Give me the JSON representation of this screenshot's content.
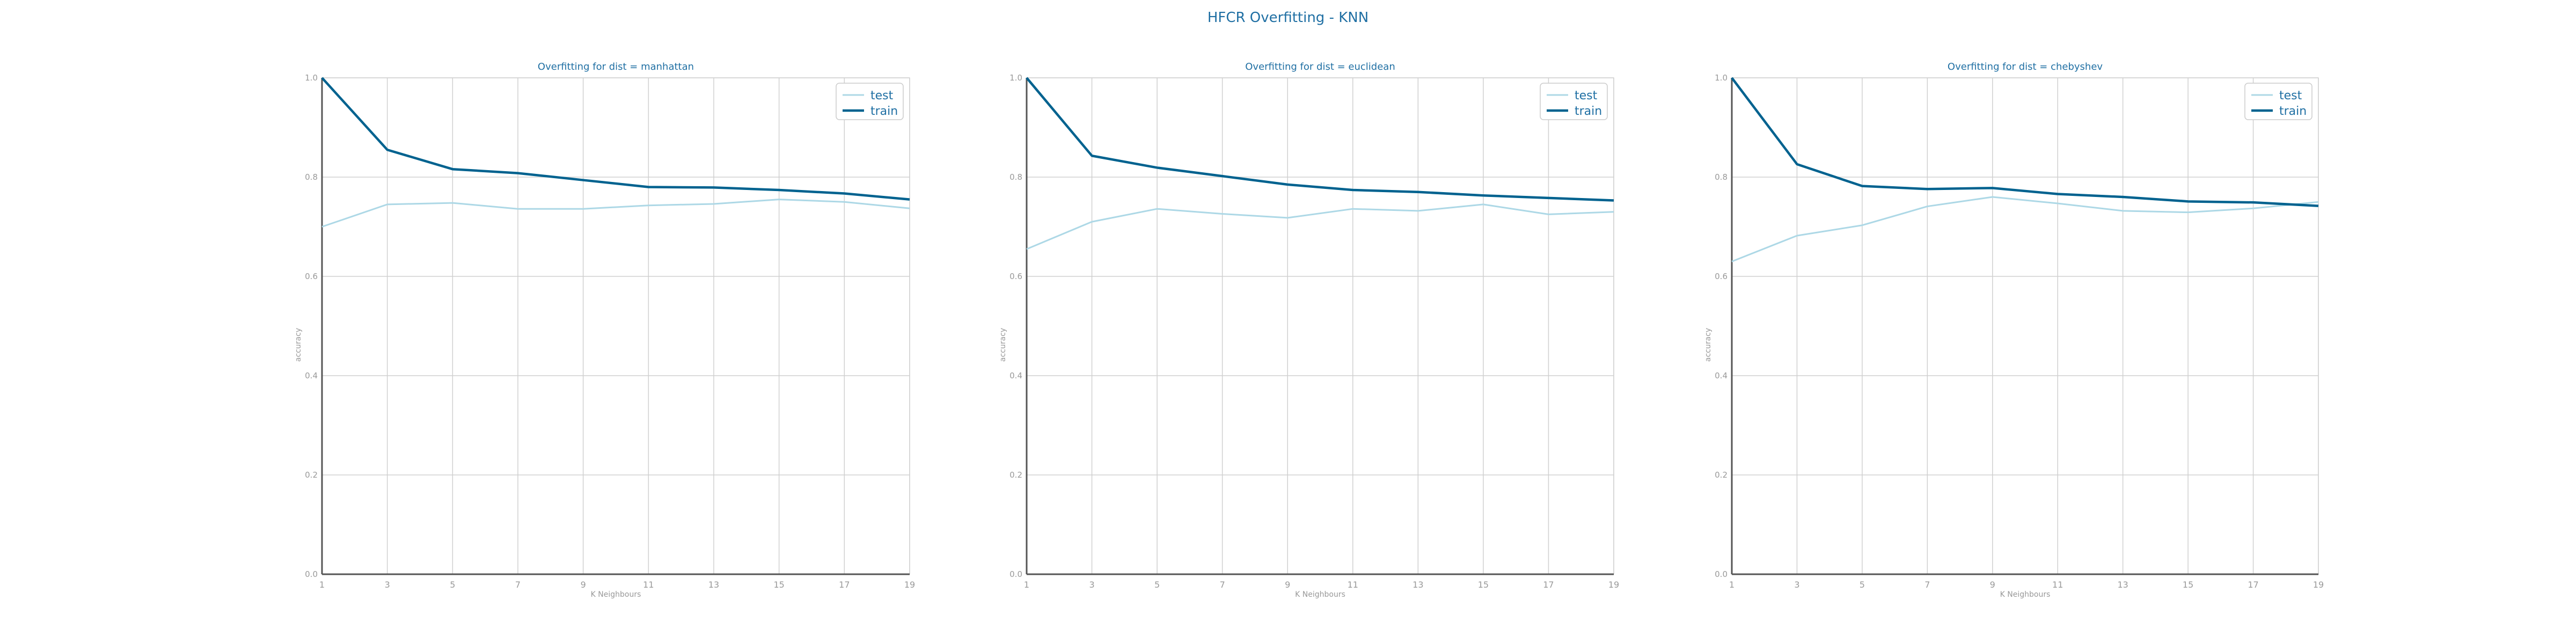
{
  "figure_title": "HFCR Overfitting - KNN",
  "colors": {
    "test": "#add8e6",
    "train": "#00628f",
    "title": "#1f6fa3",
    "grid": "#d0d0d0",
    "axis": "#555555",
    "tick": "#999999"
  },
  "chart_data": [
    {
      "type": "line",
      "title": "Overfitting for dist = manhattan",
      "xlabel": "K Neighbours",
      "ylabel": "accuracy",
      "x": [
        1,
        3,
        5,
        7,
        9,
        11,
        13,
        15,
        17,
        19
      ],
      "xticks": [
        "1",
        "3",
        "5",
        "7",
        "9",
        "11",
        "13",
        "15",
        "17",
        "19"
      ],
      "yticks": [
        "0.0",
        "0.2",
        "0.4",
        "0.6",
        "0.8",
        "1.0"
      ],
      "ylim": [
        0,
        1
      ],
      "grid": true,
      "legend": "top-right",
      "series": [
        {
          "name": "test",
          "values": [
            0.7,
            0.745,
            0.748,
            0.736,
            0.736,
            0.743,
            0.746,
            0.755,
            0.75,
            0.737
          ]
        },
        {
          "name": "train",
          "values": [
            1.0,
            0.855,
            0.816,
            0.808,
            0.794,
            0.78,
            0.779,
            0.774,
            0.767,
            0.755
          ]
        }
      ]
    },
    {
      "type": "line",
      "title": "Overfitting for dist = euclidean",
      "xlabel": "K Neighbours",
      "ylabel": "accuracy",
      "x": [
        1,
        3,
        5,
        7,
        9,
        11,
        13,
        15,
        17,
        19
      ],
      "xticks": [
        "1",
        "3",
        "5",
        "7",
        "9",
        "11",
        "13",
        "15",
        "17",
        "19"
      ],
      "yticks": [
        "0.0",
        "0.2",
        "0.4",
        "0.6",
        "0.8",
        "1.0"
      ],
      "ylim": [
        0,
        1
      ],
      "grid": true,
      "legend": "top-right",
      "series": [
        {
          "name": "test",
          "values": [
            0.655,
            0.71,
            0.736,
            0.726,
            0.718,
            0.736,
            0.732,
            0.745,
            0.725,
            0.73
          ]
        },
        {
          "name": "train",
          "values": [
            1.0,
            0.843,
            0.819,
            0.802,
            0.785,
            0.774,
            0.77,
            0.763,
            0.758,
            0.753
          ]
        }
      ]
    },
    {
      "type": "line",
      "title": "Overfitting for dist = chebyshev",
      "xlabel": "K Neighbours",
      "ylabel": "accuracy",
      "x": [
        1,
        3,
        5,
        7,
        9,
        11,
        13,
        15,
        17,
        19
      ],
      "xticks": [
        "1",
        "3",
        "5",
        "7",
        "9",
        "11",
        "13",
        "15",
        "17",
        "19"
      ],
      "yticks": [
        "0.0",
        "0.2",
        "0.4",
        "0.6",
        "0.8",
        "1.0"
      ],
      "ylim": [
        0,
        1
      ],
      "grid": true,
      "legend": "top-right",
      "series": [
        {
          "name": "test",
          "values": [
            0.63,
            0.682,
            0.703,
            0.741,
            0.76,
            0.747,
            0.732,
            0.729,
            0.737,
            0.75
          ]
        },
        {
          "name": "train",
          "values": [
            1.0,
            0.826,
            0.782,
            0.776,
            0.778,
            0.766,
            0.76,
            0.751,
            0.749,
            0.742
          ]
        }
      ]
    }
  ]
}
